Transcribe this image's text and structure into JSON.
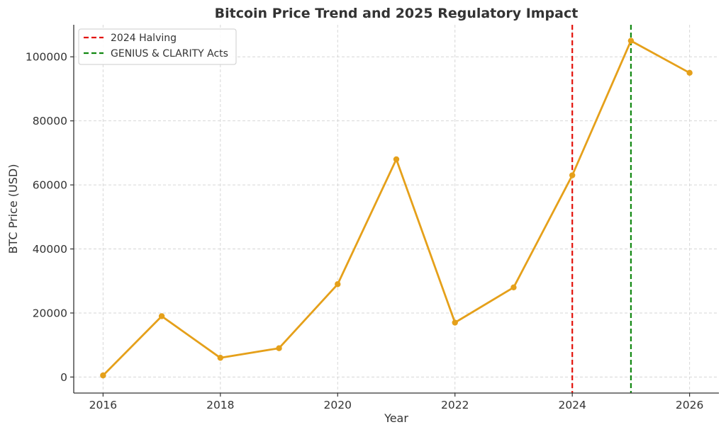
{
  "chart_data": {
    "type": "line",
    "title": "Bitcoin Price Trend and 2025 Regulatory Impact",
    "xlabel": "Year",
    "ylabel": "BTC Price (USD)",
    "xlim": [
      2015.5,
      2026.5
    ],
    "ylim": [
      -5000,
      110000
    ],
    "xticks": [
      2016,
      2018,
      2020,
      2022,
      2024,
      2026
    ],
    "yticks": [
      0,
      20000,
      40000,
      60000,
      80000,
      100000
    ],
    "grid": true,
    "legend_position": "top-left",
    "series": [
      {
        "color": "#e5a01a",
        "x": [
          2016,
          2017,
          2018,
          2019,
          2020,
          2021,
          2022,
          2023,
          2024,
          2025,
          2026
        ],
        "y": [
          500,
          19000,
          6000,
          9000,
          29000,
          68000,
          17000,
          28000,
          63000,
          105000,
          95000
        ]
      }
    ],
    "vlines": [
      {
        "name": "2024 Halving",
        "x": 2024,
        "color": "#e3120b"
      },
      {
        "name": "GENIUS & CLARITY Acts",
        "x": 2025,
        "color": "#118811"
      }
    ]
  }
}
